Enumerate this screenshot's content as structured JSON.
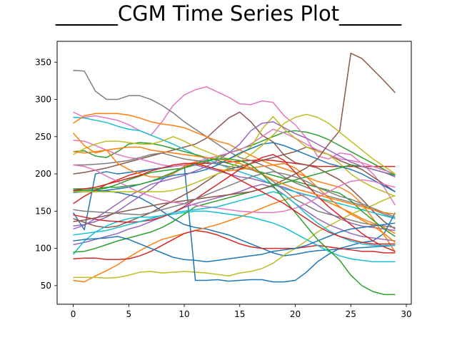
{
  "chart_data": {
    "type": "line",
    "title": "______CGM Time Series Plot______",
    "xlabel": "",
    "ylabel": "",
    "xlim": [
      -1.45,
      30.45
    ],
    "ylim": [
      25,
      378
    ],
    "xticks": [
      0,
      5,
      10,
      15,
      20,
      25,
      30
    ],
    "yticks": [
      50,
      100,
      150,
      200,
      250,
      300,
      350
    ],
    "grid": false,
    "legend": "none",
    "series": [
      {
        "color": "#1f77b4",
        "values": [
          177,
          178,
          178,
          177,
          175,
          172,
          168,
          160,
          150,
          140,
          132,
          128,
          126,
          122,
          118,
          112,
          106,
          100,
          94,
          90,
          92,
          95,
          97,
          98,
          99,
          100,
          101,
          102,
          103,
          104
        ]
      },
      {
        "color": "#ff7f0e",
        "values": [
          57,
          55,
          63,
          70,
          78,
          88,
          97,
          105,
          112,
          116,
          120,
          124,
          128,
          132,
          137,
          142,
          148,
          154,
          160,
          165,
          170,
          172,
          168,
          162,
          155,
          148,
          140,
          134,
          128,
          120
        ]
      },
      {
        "color": "#2ca02c",
        "values": [
          178,
          178,
          178,
          181,
          186,
          192,
          197,
          202,
          204,
          206,
          208,
          212,
          216,
          222,
          228,
          233,
          238,
          244,
          250,
          256,
          258,
          256,
          252,
          246,
          238,
          230,
          222,
          214,
          206,
          198
        ]
      },
      {
        "color": "#d62728",
        "values": [
          160,
          170,
          178,
          186,
          192,
          198,
          202,
          206,
          208,
          210,
          212,
          214,
          214,
          215,
          216,
          217,
          218,
          219,
          218,
          216,
          214,
          212,
          210,
          210,
          210,
          210,
          210,
          210,
          210,
          210
        ]
      },
      {
        "color": "#9467bd",
        "values": [
          130,
          132,
          136,
          142,
          150,
          160,
          170,
          180,
          192,
          202,
          210,
          212,
          208,
          204,
          200,
          196,
          194,
          190,
          186,
          182,
          176,
          168,
          158,
          148,
          140,
          134,
          130,
          128,
          126,
          124
        ]
      },
      {
        "color": "#8c564b",
        "values": [
          200,
          202,
          205,
          208,
          212,
          216,
          220,
          224,
          228,
          232,
          236,
          240,
          248,
          262,
          275,
          283,
          270,
          252,
          243,
          225,
          215,
          212,
          208,
          200,
          192,
          180,
          166,
          150,
          136,
          126
        ]
      },
      {
        "color": "#e377c2",
        "values": [
          283,
          276,
          278,
          275,
          272,
          266,
          258,
          252,
          270,
          292,
          306,
          313,
          317,
          310,
          303,
          294,
          293,
          298,
          296,
          278,
          266,
          248,
          224,
          220,
          228,
          226,
          214,
          200,
          182,
          158
        ]
      },
      {
        "color": "#7f7f7f",
        "values": [
          339,
          338,
          311,
          300,
          300,
          305,
          305,
          300,
          292,
          282,
          270,
          260,
          250,
          240,
          230,
          222,
          218,
          212,
          205,
          196,
          188,
          182,
          176,
          170,
          166,
          162,
          158,
          152,
          146,
          140
        ]
      },
      {
        "color": "#bcbd22",
        "values": [
          61,
          61,
          61,
          60,
          61,
          64,
          68,
          69,
          67,
          68,
          69,
          68,
          67,
          65,
          63,
          67,
          69,
          73,
          80,
          91,
          100,
          110,
          122,
          130,
          138,
          146,
          152,
          158,
          165,
          171
        ]
      },
      {
        "color": "#17becf",
        "values": [
          276,
          275,
          272,
          269,
          264,
          260,
          258,
          252,
          246,
          240,
          233,
          226,
          220,
          214,
          208,
          203,
          198,
          192,
          186,
          180,
          176,
          172,
          168,
          164,
          160,
          156,
          152,
          148,
          144,
          140
        ]
      },
      {
        "color": "#1f77b4",
        "values": [
          148,
          125,
          200,
          203,
          200,
          202,
          204,
          206,
          208,
          210,
          212,
          57,
          57,
          58,
          56,
          57,
          58,
          58,
          55,
          55,
          57,
          68,
          82,
          92,
          100,
          104,
          108,
          110,
          120,
          148
        ]
      },
      {
        "color": "#ff7f0e",
        "values": [
          268,
          278,
          281,
          281,
          281,
          279,
          275,
          270,
          267,
          265,
          262,
          256,
          250,
          244,
          240,
          232,
          225,
          218,
          212,
          207,
          202,
          196,
          190,
          186,
          182,
          174,
          160,
          140,
          118,
          95
        ]
      },
      {
        "color": "#2ca02c",
        "values": [
          230,
          231,
          224,
          222,
          230,
          240,
          242,
          241,
          238,
          234,
          230,
          226,
          222,
          218,
          214,
          210,
          206,
          202,
          198,
          194,
          190,
          186,
          182,
          178,
          174,
          164,
          150,
          138,
          126,
          116
        ]
      },
      {
        "color": "#d62728",
        "values": [
          86,
          87,
          87,
          85,
          85,
          86,
          90,
          96,
          104,
          112,
          120,
          124,
          122,
          118,
          112,
          106,
          102,
          100,
          100,
          100,
          100,
          102,
          104,
          102,
          100,
          98,
          96,
          96,
          94,
          94
        ]
      },
      {
        "color": "#9467bd",
        "values": [
          105,
          108,
          112,
          116,
          120,
          126,
          130,
          136,
          142,
          148,
          155,
          160,
          164,
          168,
          172,
          176,
          182,
          186,
          182,
          172,
          160,
          150,
          140,
          132,
          126,
          120,
          116,
          114,
          112,
          110
        ]
      },
      {
        "color": "#8c564b",
        "values": [
          140,
          135,
          130,
          128,
          130,
          136,
          142,
          148,
          156,
          164,
          172,
          180,
          190,
          200,
          206,
          210,
          214,
          218,
          222,
          226,
          230,
          236,
          232,
          226,
          218,
          212,
          206,
          196,
          186,
          176
        ]
      },
      {
        "color": "#e377c2",
        "values": [
          245,
          244,
          238,
          232,
          226,
          222,
          220,
          216,
          212,
          210,
          212,
          216,
          220,
          224,
          228,
          232,
          240,
          250,
          260,
          255,
          248,
          240,
          232,
          226,
          220,
          218,
          215,
          210,
          205,
          200
        ]
      },
      {
        "color": "#7f7f7f",
        "values": [
          212,
          212,
          213,
          214,
          216,
          218,
          222,
          226,
          228,
          224,
          220,
          218,
          216,
          213,
          210,
          208,
          206,
          200,
          190,
          178,
          166,
          158,
          150,
          146,
          142,
          138,
          134,
          132,
          130,
          128
        ]
      },
      {
        "color": "#bcbd22",
        "values": [
          226,
          234,
          240,
          244,
          244,
          242,
          240,
          240,
          244,
          250,
          244,
          236,
          230,
          224,
          220,
          226,
          236,
          260,
          277,
          260,
          248,
          236,
          230,
          226,
          214,
          200,
          190,
          182,
          176,
          170
        ]
      },
      {
        "color": "#17becf",
        "values": [
          92,
          110,
          122,
          130,
          136,
          140,
          142,
          142,
          144,
          146,
          148,
          150,
          150,
          148,
          146,
          144,
          142,
          138,
          134,
          128,
          120,
          112,
          104,
          96,
          90,
          86,
          84,
          82,
          82,
          82
        ]
      },
      {
        "color": "#1f77b4",
        "values": [
          175,
          176,
          176,
          178,
          180,
          182,
          186,
          190,
          194,
          198,
          200,
          202,
          206,
          212,
          220,
          228,
          234,
          240,
          242,
          238,
          232,
          226,
          220,
          214,
          210,
          206,
          200,
          192,
          184,
          176
        ]
      },
      {
        "color": "#ff7f0e",
        "values": [
          255,
          238,
          228,
          232,
          214,
          206,
          200,
          196,
          196,
          200,
          210,
          216,
          210,
          206,
          204,
          206,
          208,
          210,
          212,
          214,
          208,
          196,
          182,
          168,
          156,
          146,
          138,
          130,
          120,
          108
        ]
      },
      {
        "color": "#2ca02c",
        "values": [
          95,
          96,
          100,
          105,
          110,
          114,
          118,
          122,
          128,
          136,
          146,
          156,
          160,
          164,
          168,
          172,
          176,
          180,
          184,
          188,
          192,
          196,
          200,
          204,
          208,
          212,
          210,
          206,
          202,
          198
        ]
      },
      {
        "color": "#d62728",
        "values": [
          145,
          142,
          139,
          137,
          136,
          135,
          136,
          138,
          142,
          148,
          156,
          166,
          176,
          186,
          196,
          206,
          214,
          222,
          226,
          218,
          202,
          186,
          170,
          156,
          144,
          132,
          120,
          110,
          102,
          96
        ]
      },
      {
        "color": "#9467bd",
        "values": [
          126,
          131,
          140,
          150,
          160,
          170,
          178,
          186,
          190,
          194,
          198,
          204,
          210,
          218,
          228,
          240,
          258,
          268,
          270,
          262,
          254,
          248,
          240,
          232,
          224,
          216,
          210,
          206,
          202,
          196
        ]
      },
      {
        "color": "#8c564b",
        "values": [
          136,
          138,
          141,
          144,
          148,
          151,
          154,
          157,
          160,
          162,
          164,
          166,
          168,
          170,
          172,
          174,
          176,
          180,
          185,
          192,
          200,
          208,
          220,
          240,
          258,
          362,
          355,
          340,
          325,
          309
        ]
      },
      {
        "color": "#e377c2",
        "values": [
          212,
          210,
          205,
          197,
          190,
          182,
          175,
          170,
          165,
          162,
          160,
          158,
          156,
          154,
          152,
          150,
          149,
          148,
          148,
          150,
          154,
          160,
          168,
          176,
          184,
          190,
          192,
          190,
          186,
          182
        ]
      },
      {
        "color": "#7f7f7f",
        "values": [
          152,
          150,
          149,
          148,
          147,
          146,
          145,
          148,
          152,
          156,
          160,
          166,
          172,
          178,
          184,
          190,
          196,
          200,
          203,
          200,
          196,
          190,
          182,
          176,
          170,
          166,
          160,
          154,
          148,
          142
        ]
      },
      {
        "color": "#bcbd22",
        "values": [
          176,
          176,
          176,
          176,
          176,
          176,
          176,
          176,
          176,
          178,
          182,
          188,
          194,
          200,
          208,
          216,
          226,
          238,
          252,
          268,
          276,
          280,
          276,
          268,
          256,
          244,
          232,
          220,
          210,
          200
        ]
      },
      {
        "color": "#17becf",
        "values": [
          118,
          120,
          122,
          124,
          128,
          132,
          136,
          140,
          144,
          148,
          150,
          152,
          154,
          156,
          160,
          164,
          168,
          172,
          176,
          172,
          160,
          146,
          134,
          124,
          116,
          110,
          106,
          104,
          104,
          104
        ]
      },
      {
        "color": "#1f77b4",
        "values": [
          110,
          112,
          113,
          114,
          116,
          112,
          106,
          100,
          94,
          88,
          85,
          84,
          82,
          84,
          86,
          88,
          90,
          92,
          96,
          98,
          100,
          104,
          110,
          116,
          122,
          126,
          128,
          130,
          132,
          134
        ]
      },
      {
        "color": "#ff7f0e",
        "values": [
          230,
          228,
          230,
          232,
          234,
          236,
          236,
          232,
          230,
          228,
          226,
          224,
          222,
          220,
          218,
          214,
          208,
          200,
          192,
          186,
          180,
          176,
          172,
          168,
          164,
          160,
          156,
          152,
          148,
          146
        ]
      },
      {
        "color": "#2ca02c",
        "values": [
          180,
          180,
          180,
          182,
          182,
          184,
          186,
          190,
          196,
          202,
          208,
          214,
          218,
          220,
          220,
          218,
          212,
          200,
          184,
          166,
          148,
          130,
          112,
          98,
          84,
          64,
          50,
          42,
          38,
          38
        ]
      },
      {
        "color": "#d62728",
        "values": [
          178,
          180,
          182,
          186,
          190,
          194,
          198,
          204,
          208,
          212,
          214,
          214,
          210,
          206,
          200,
          192,
          184,
          176,
          168,
          160,
          150,
          140,
          130,
          122,
          116,
          112,
          108,
          106,
          106,
          106
        ]
      }
    ]
  }
}
